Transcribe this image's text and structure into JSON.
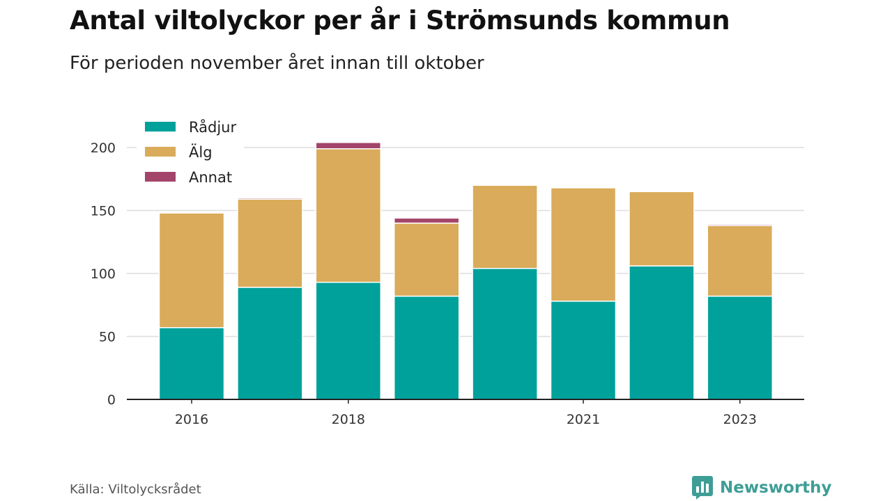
{
  "header": {
    "title": "Antal viltolyckor per år i Strömsunds kommun",
    "subtitle": "För perioden november året innan till oktober"
  },
  "footer": {
    "source": "Källa: Viltolycksrådet",
    "brand": "Newsworthy",
    "brand_icon": "bar-chart-logo-icon"
  },
  "colors": {
    "radjur": "#00a19b",
    "alg": "#d9ab5a",
    "annat": "#a3456a",
    "grid": "#dddddd",
    "axis": "#222222",
    "brand": "#3e9e96"
  },
  "chart_data": {
    "type": "bar",
    "stacked": true,
    "categories": [
      "2016",
      "2017",
      "2018",
      "2019",
      "2020",
      "2021",
      "2022",
      "2023"
    ],
    "x_tick_labels": [
      "2016",
      "",
      "2018",
      "",
      "",
      "2021",
      "",
      "2023"
    ],
    "series": [
      {
        "name": "Rådjur",
        "color": "#00a19b",
        "values": [
          57,
          89,
          93,
          82,
          104,
          78,
          106,
          82
        ]
      },
      {
        "name": "Älg",
        "color": "#d9ab5a",
        "values": [
          91,
          70,
          106,
          58,
          66,
          90,
          59,
          56
        ]
      },
      {
        "name": "Annat",
        "color": "#a3456a",
        "values": [
          0,
          1,
          5,
          4,
          0,
          0,
          0,
          1
        ]
      }
    ],
    "title": "Antal viltolyckor per år i Strömsunds kommun",
    "subtitle": "För perioden november året innan till oktober",
    "xlabel": "",
    "ylabel": "",
    "ylim": [
      0,
      200
    ],
    "y_ticks": [
      0,
      50,
      100,
      150,
      200
    ],
    "grid": true,
    "legend_position": "top-left"
  }
}
